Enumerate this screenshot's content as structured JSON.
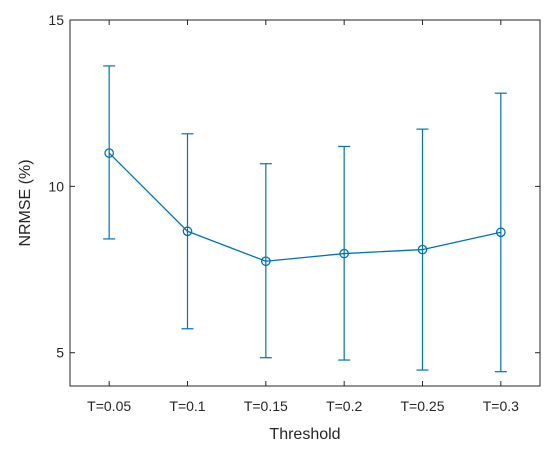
{
  "chart_data": {
    "type": "line",
    "title": "",
    "xlabel": "Threshold",
    "ylabel": "NRMSE (%)",
    "categories": [
      "T=0.05",
      "T=0.1",
      "T=0.15",
      "T=0.2",
      "T=0.25",
      "T=0.3"
    ],
    "series": [
      {
        "values": [
          11.0,
          8.65,
          7.75,
          7.98,
          8.1,
          8.62
        ],
        "error_lower": [
          8.42,
          5.72,
          4.85,
          4.78,
          4.48,
          4.43
        ],
        "error_upper": [
          13.62,
          11.58,
          10.68,
          11.2,
          11.72,
          12.8
        ]
      }
    ],
    "ylim": [
      4,
      15
    ],
    "yticks": [
      5,
      10,
      15
    ],
    "grid": false,
    "marker": "circle",
    "color": "#0072BD",
    "axis_color": "#262626"
  }
}
